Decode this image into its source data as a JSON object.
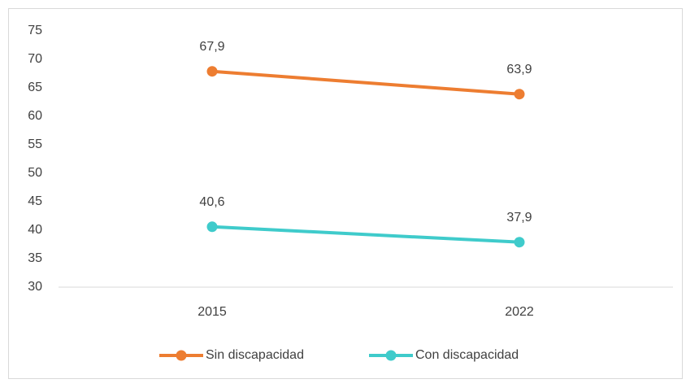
{
  "chart_data": {
    "type": "line",
    "categories": [
      "2015",
      "2022"
    ],
    "series": [
      {
        "name": "Sin discapacidad",
        "color": "#ed7d31",
        "values": [
          67.9,
          63.9
        ],
        "value_labels": [
          "67,9",
          "63,9"
        ]
      },
      {
        "name": "Con discapacidad",
        "color": "#3fcbcb",
        "values": [
          40.6,
          37.9
        ],
        "value_labels": [
          "40,6",
          "37,9"
        ]
      }
    ],
    "ylim": [
      30,
      75
    ],
    "yticks": [
      30,
      35,
      40,
      45,
      50,
      55,
      60,
      65,
      70,
      75
    ],
    "grid": false,
    "legend": "bottom"
  }
}
